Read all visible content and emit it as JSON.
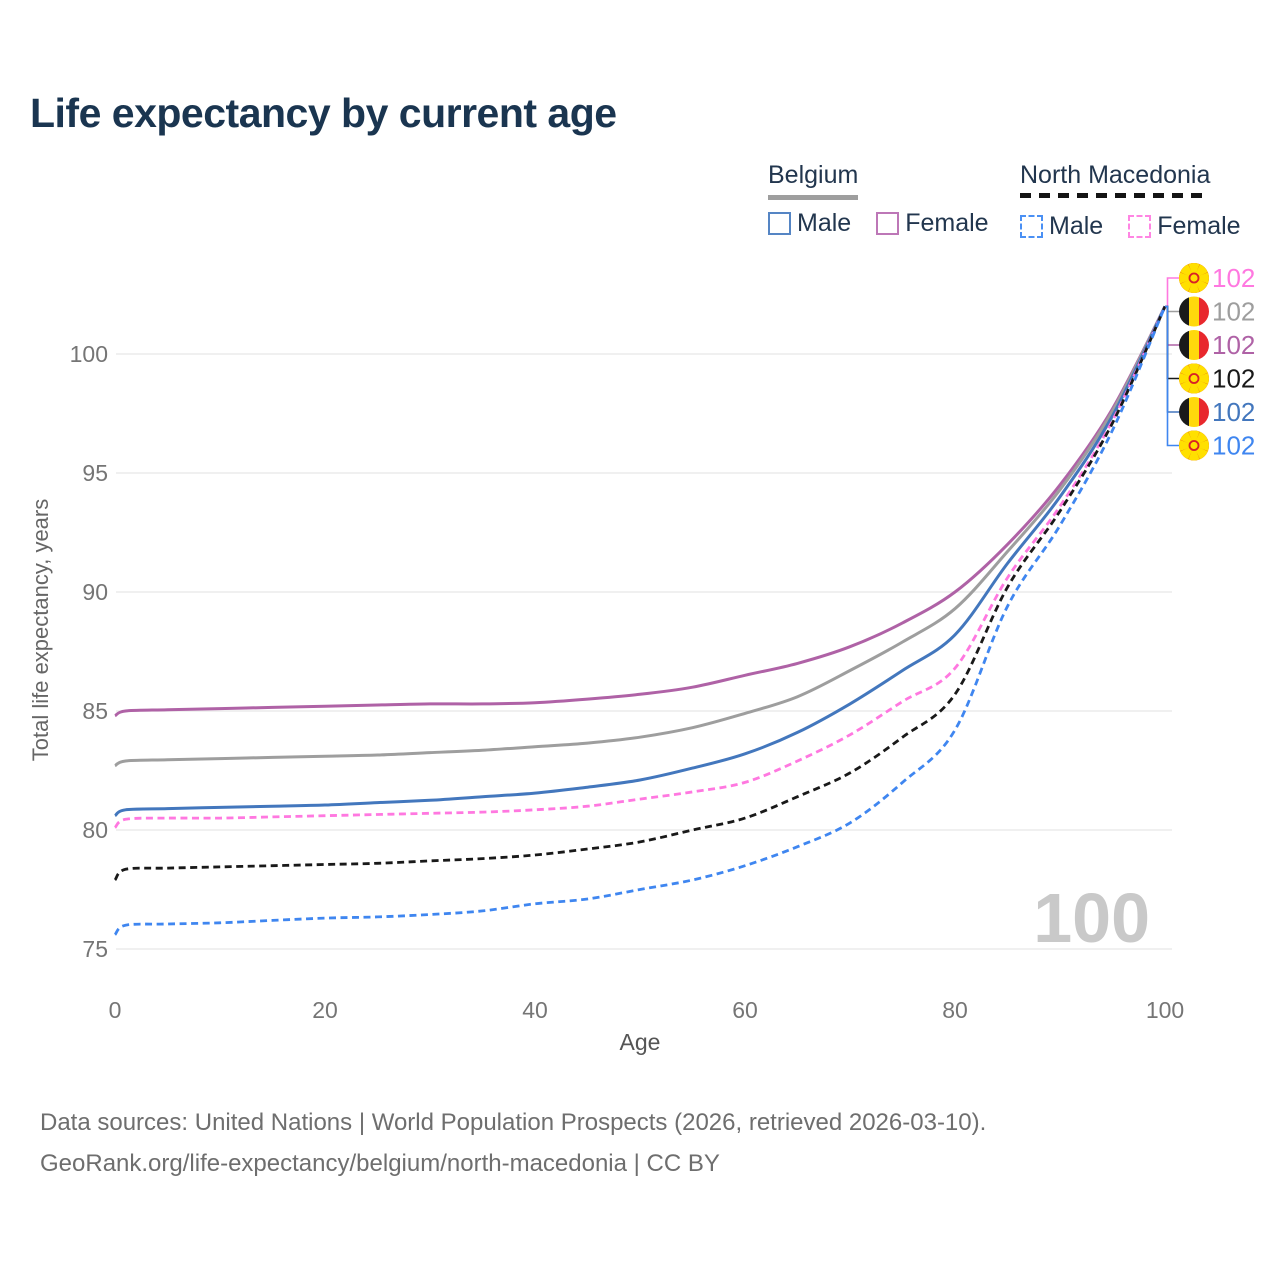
{
  "title": "Life expectancy by current age",
  "watermark": "100",
  "legend": {
    "groups": [
      {
        "title": "Belgium",
        "underline_style": "solid",
        "underline_color": "#9e9e9e",
        "items": [
          {
            "label": "Male",
            "color": "#5585c4",
            "dashed": false
          },
          {
            "label": "Female",
            "color": "#bd77b7",
            "dashed": false
          }
        ]
      },
      {
        "title": "North Macedonia",
        "underline_style": "dashed",
        "underline_color": "#141414",
        "items": [
          {
            "label": "Male",
            "color": "#4a90f4",
            "dashed": true
          },
          {
            "label": "Female",
            "color": "#ff85e3",
            "dashed": true
          }
        ]
      }
    ]
  },
  "footer": {
    "line1": "Data sources: United Nations | World Population Prospects (2026, retrieved 2026-03-10).",
    "line2": "GeoRank.org/life-expectancy/belgium/north-macedonia | CC BY"
  },
  "chart_data": {
    "type": "line",
    "title": "Life expectancy by current age",
    "xlabel": "Age",
    "ylabel": "Total life expectancy, years",
    "xlim": [
      0,
      100
    ],
    "ylim": [
      74.5,
      103
    ],
    "x_ticks": [
      0,
      20,
      40,
      60,
      80,
      100
    ],
    "y_ticks": [
      75,
      80,
      85,
      90,
      95,
      100
    ],
    "grid": "horizontal-only",
    "legend_position": "top-right",
    "x": [
      0,
      1,
      5,
      10,
      15,
      20,
      25,
      30,
      35,
      40,
      45,
      50,
      55,
      60,
      65,
      70,
      75,
      80,
      85,
      90,
      95,
      100
    ],
    "series": [
      {
        "name": "Belgium Female",
        "country": "Belgium",
        "sex": "Female",
        "color": "#af62a6",
        "dashed": false,
        "flag": "mk-none-be",
        "flag_type": "be",
        "label_row": 2,
        "end_value": "102",
        "values": [
          84.8,
          85.0,
          85.05,
          85.1,
          85.15,
          85.2,
          85.25,
          85.3,
          85.3,
          85.35,
          85.5,
          85.7,
          86.0,
          86.5,
          87.0,
          87.7,
          88.7,
          90.0,
          92.0,
          94.5,
          97.7,
          102
        ]
      },
      {
        "name": "Belgium Both sexes",
        "country": "Belgium",
        "sex": "Both",
        "color": "#9e9e9e",
        "dashed": false,
        "flag_type": "be",
        "label_row": 1,
        "end_value": "102",
        "values": [
          82.7,
          82.9,
          82.95,
          83.0,
          83.05,
          83.1,
          83.15,
          83.25,
          83.35,
          83.5,
          83.65,
          83.9,
          84.3,
          84.9,
          85.6,
          86.7,
          87.9,
          89.3,
          91.7,
          94.3,
          97.6,
          102
        ]
      },
      {
        "name": "Belgium Male",
        "country": "Belgium",
        "sex": "Male",
        "color": "#4377bd",
        "dashed": false,
        "flag_type": "be",
        "label_row": 4,
        "end_value": "102",
        "values": [
          80.6,
          80.85,
          80.9,
          80.95,
          81.0,
          81.05,
          81.15,
          81.25,
          81.4,
          81.55,
          81.8,
          82.1,
          82.6,
          83.2,
          84.1,
          85.3,
          86.7,
          88.2,
          91.2,
          94.0,
          97.4,
          102
        ]
      },
      {
        "name": "North Macedonia Female",
        "country": "North Macedonia",
        "sex": "Female",
        "color": "#ff78e0",
        "dashed": true,
        "flag_type": "mk",
        "label_row": 0,
        "end_value": "102",
        "values": [
          80.1,
          80.45,
          80.5,
          80.5,
          80.55,
          80.6,
          80.65,
          80.7,
          80.75,
          80.85,
          81.0,
          81.3,
          81.6,
          82.0,
          82.9,
          84.0,
          85.4,
          86.8,
          90.6,
          93.6,
          97.2,
          102
        ]
      },
      {
        "name": "North Macedonia Both sexes",
        "country": "North Macedonia",
        "sex": "Both",
        "color": "#191919",
        "dashed": true,
        "flag_type": "mk",
        "label_row": 3,
        "end_value": "102",
        "values": [
          77.9,
          78.35,
          78.4,
          78.45,
          78.5,
          78.55,
          78.6,
          78.7,
          78.8,
          78.95,
          79.2,
          79.5,
          80.0,
          80.5,
          81.4,
          82.4,
          83.9,
          85.7,
          90.2,
          93.4,
          97.1,
          102
        ]
      },
      {
        "name": "North Macedonia Male",
        "country": "North Macedonia",
        "sex": "Male",
        "color": "#3f86f0",
        "dashed": true,
        "flag_type": "mk",
        "label_row": 5,
        "end_value": "102",
        "values": [
          75.6,
          76.0,
          76.05,
          76.1,
          76.2,
          76.3,
          76.35,
          76.45,
          76.6,
          76.9,
          77.1,
          77.5,
          77.9,
          78.5,
          79.3,
          80.3,
          82.0,
          84.2,
          89.4,
          92.8,
          96.8,
          102
        ]
      }
    ]
  }
}
